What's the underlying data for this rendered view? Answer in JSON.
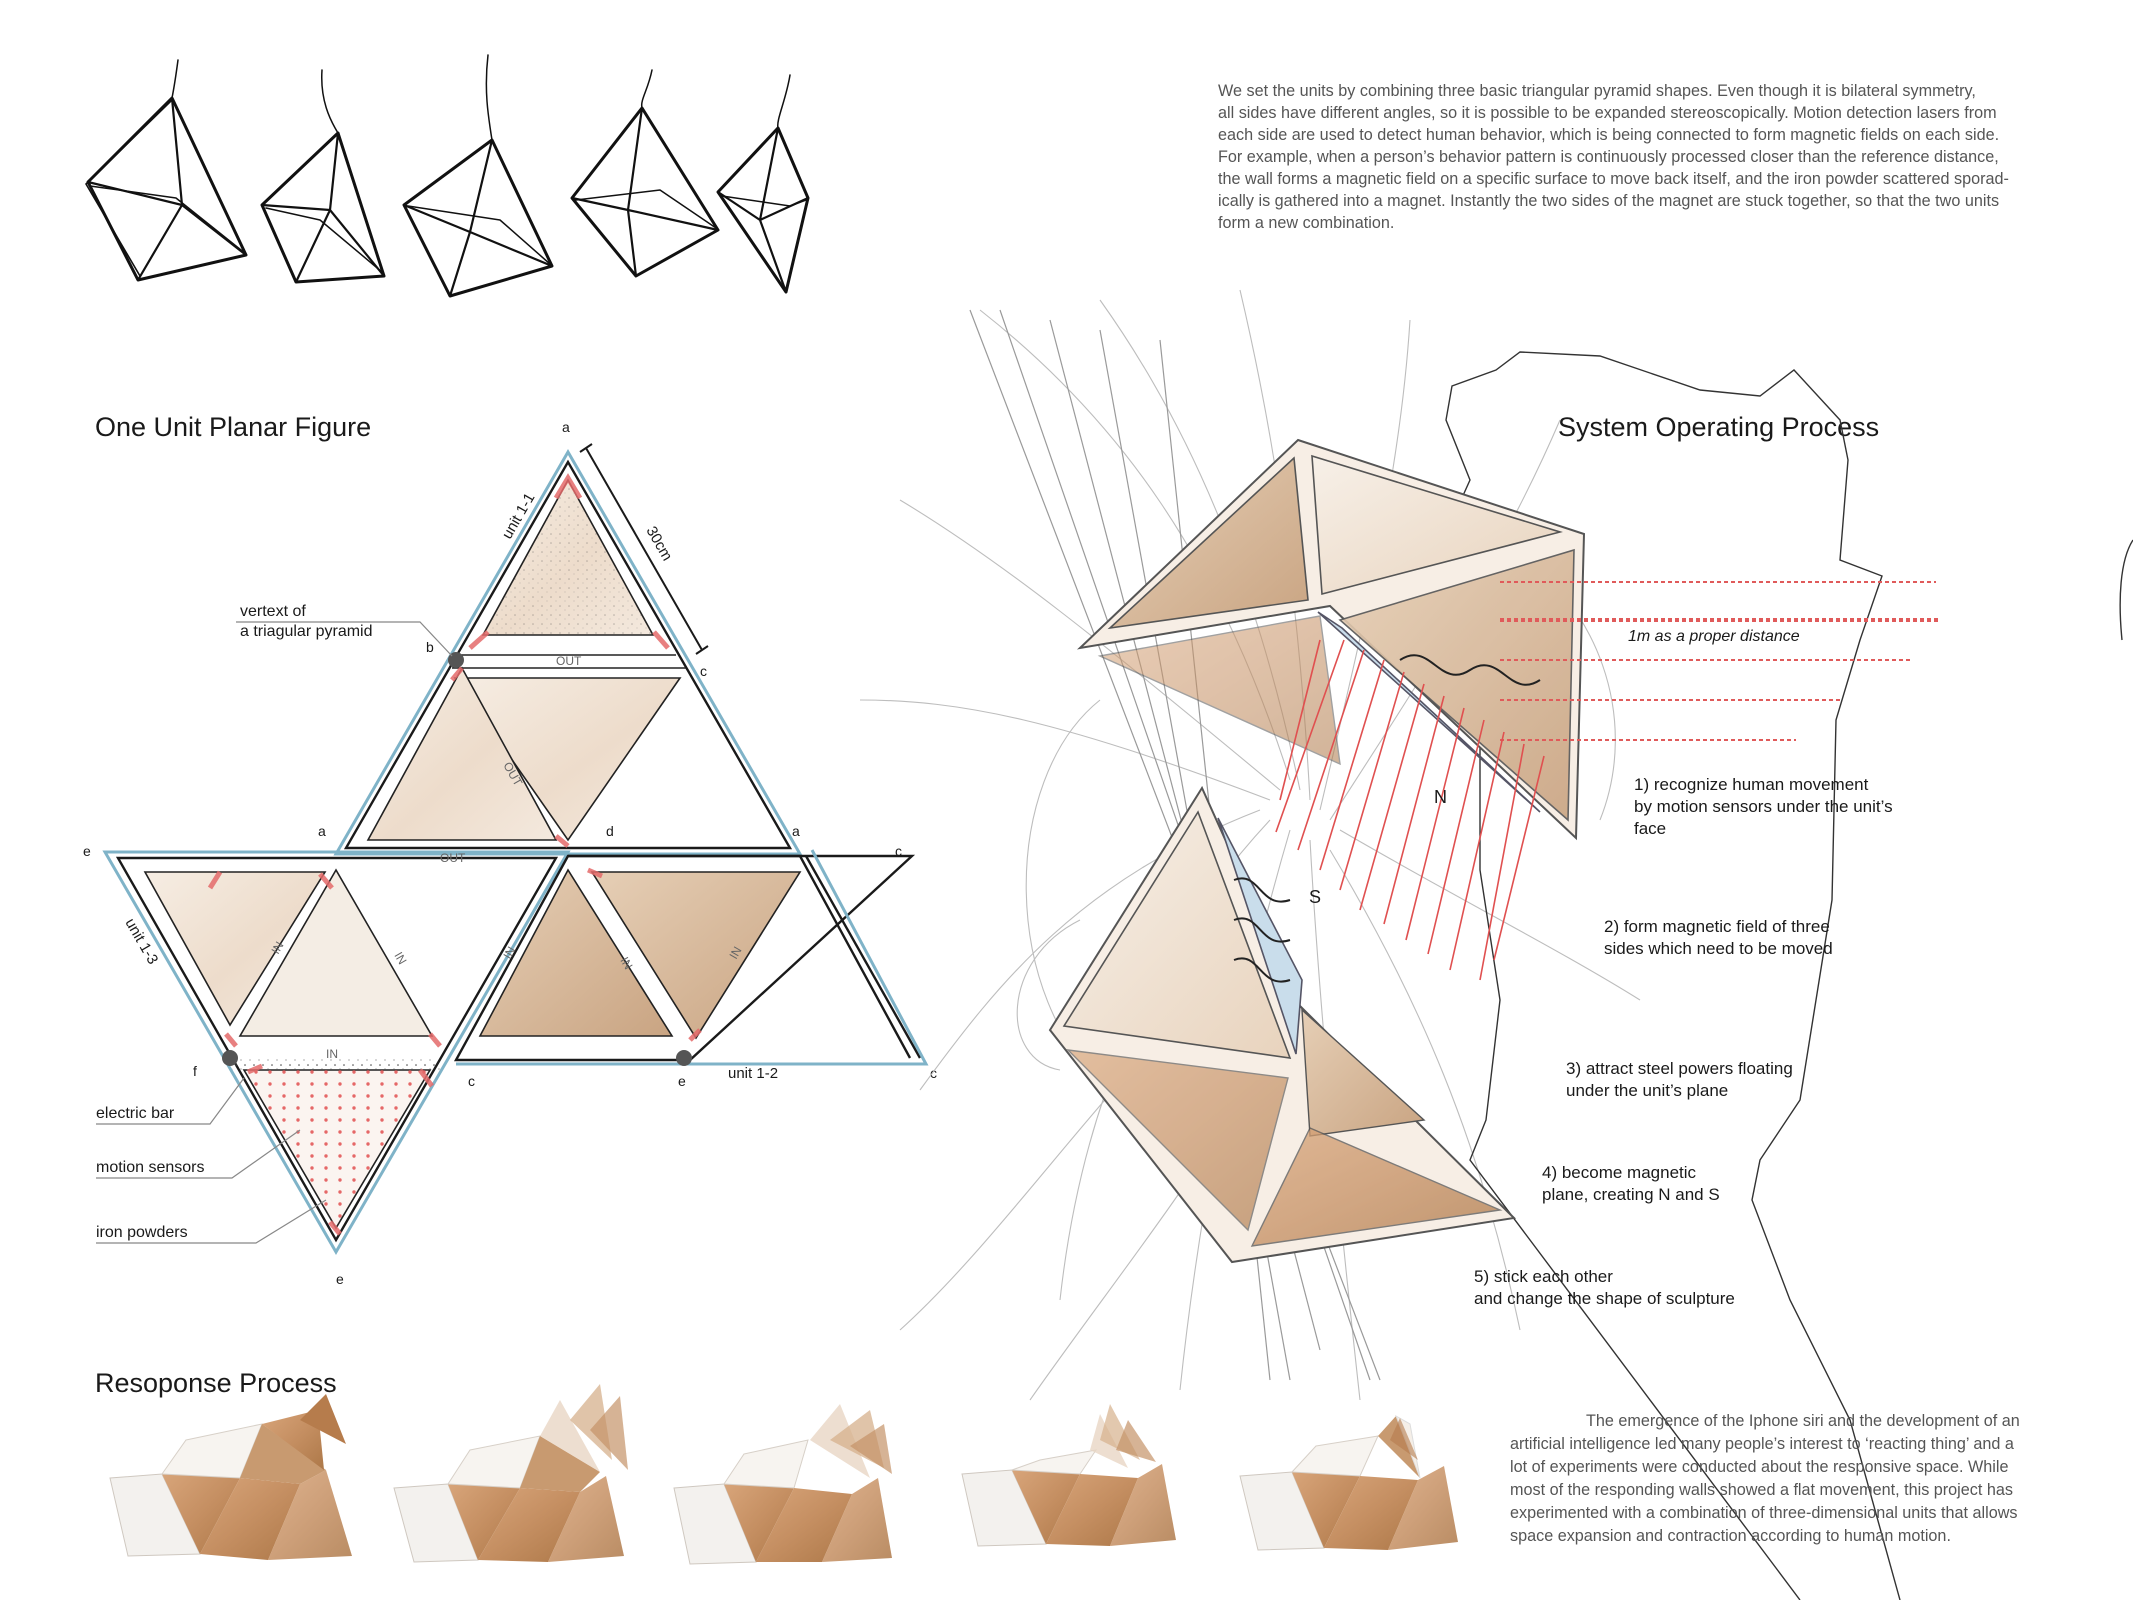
{
  "intro_paragraph": [
    "We set the units by combining three basic triangular pyramid shapes. Even though it is bilateral symmetry,",
    "all sides have different angles, so it is possible to be expanded stereoscopically. Motion detection lasers from",
    "each side are used to detect human behavior, which is being connected  to form magnetic fields on each side.",
    "For example, when a person’s behavior pattern is continuously processed closer than the reference distance,",
    "the wall forms a magnetic field on a specific surface to move back itself, and the iron powder scattered sporad-",
    "ically is gathered into a magnet. Instantly the two sides of the magnet are stuck together, so that the two units",
    "form a new combination."
  ],
  "planar_figure": {
    "title": "One Unit Planar Figure",
    "dimension": "30cm",
    "vertex_note": [
      "vertext of",
      "a triagular pyramid"
    ],
    "legend": [
      "electric bar",
      "motion sensors",
      "iron powders"
    ],
    "unit_labels": [
      "unit 1-1",
      "unit 1-3",
      "unit 1-2"
    ],
    "face_labels": {
      "out": "OUT",
      "in": "IN"
    },
    "vertices": {
      "a": "a",
      "b": "b",
      "c": "c",
      "d": "d",
      "e": "e",
      "f": "f"
    }
  },
  "system_process": {
    "title": "System Operating Process",
    "distance_note": "1m as a proper distance",
    "pole_n": "N",
    "pole_s": "S",
    "steps": [
      [
        "1) recognize human movement",
        "by motion sensors under the unit’s",
        "face"
      ],
      [
        "2) form magnetic field of three",
        "sides which need to be  moved"
      ],
      [
        "3) attract steel powers floating",
        "under the unit’s plane"
      ],
      [
        "4) become magnetic",
        "plane, creating N and S"
      ],
      [
        "5) stick each other",
        "and change the shape of sculpture"
      ]
    ]
  },
  "response_process": {
    "title": "Resoponse Process"
  },
  "closing_paragraph": [
    "The emergence of the Iphone siri and the development of an",
    "artificial intelligence led many people’s interest to ‘reacting thing’ and a",
    "lot of experiments were conducted about the responsive space. While",
    "most of the responding walls showed a flat movement, this project has",
    "experimented with a combination of three-dimensional units that allows",
    "space expansion and contraction according to human motion."
  ],
  "colors": {
    "outline_blue": "#7fb3c8",
    "sensor_red": "#e04848",
    "wood": "#c99a6c",
    "face_pale": "#f1e4d6",
    "ink": "#1a1a1a"
  }
}
